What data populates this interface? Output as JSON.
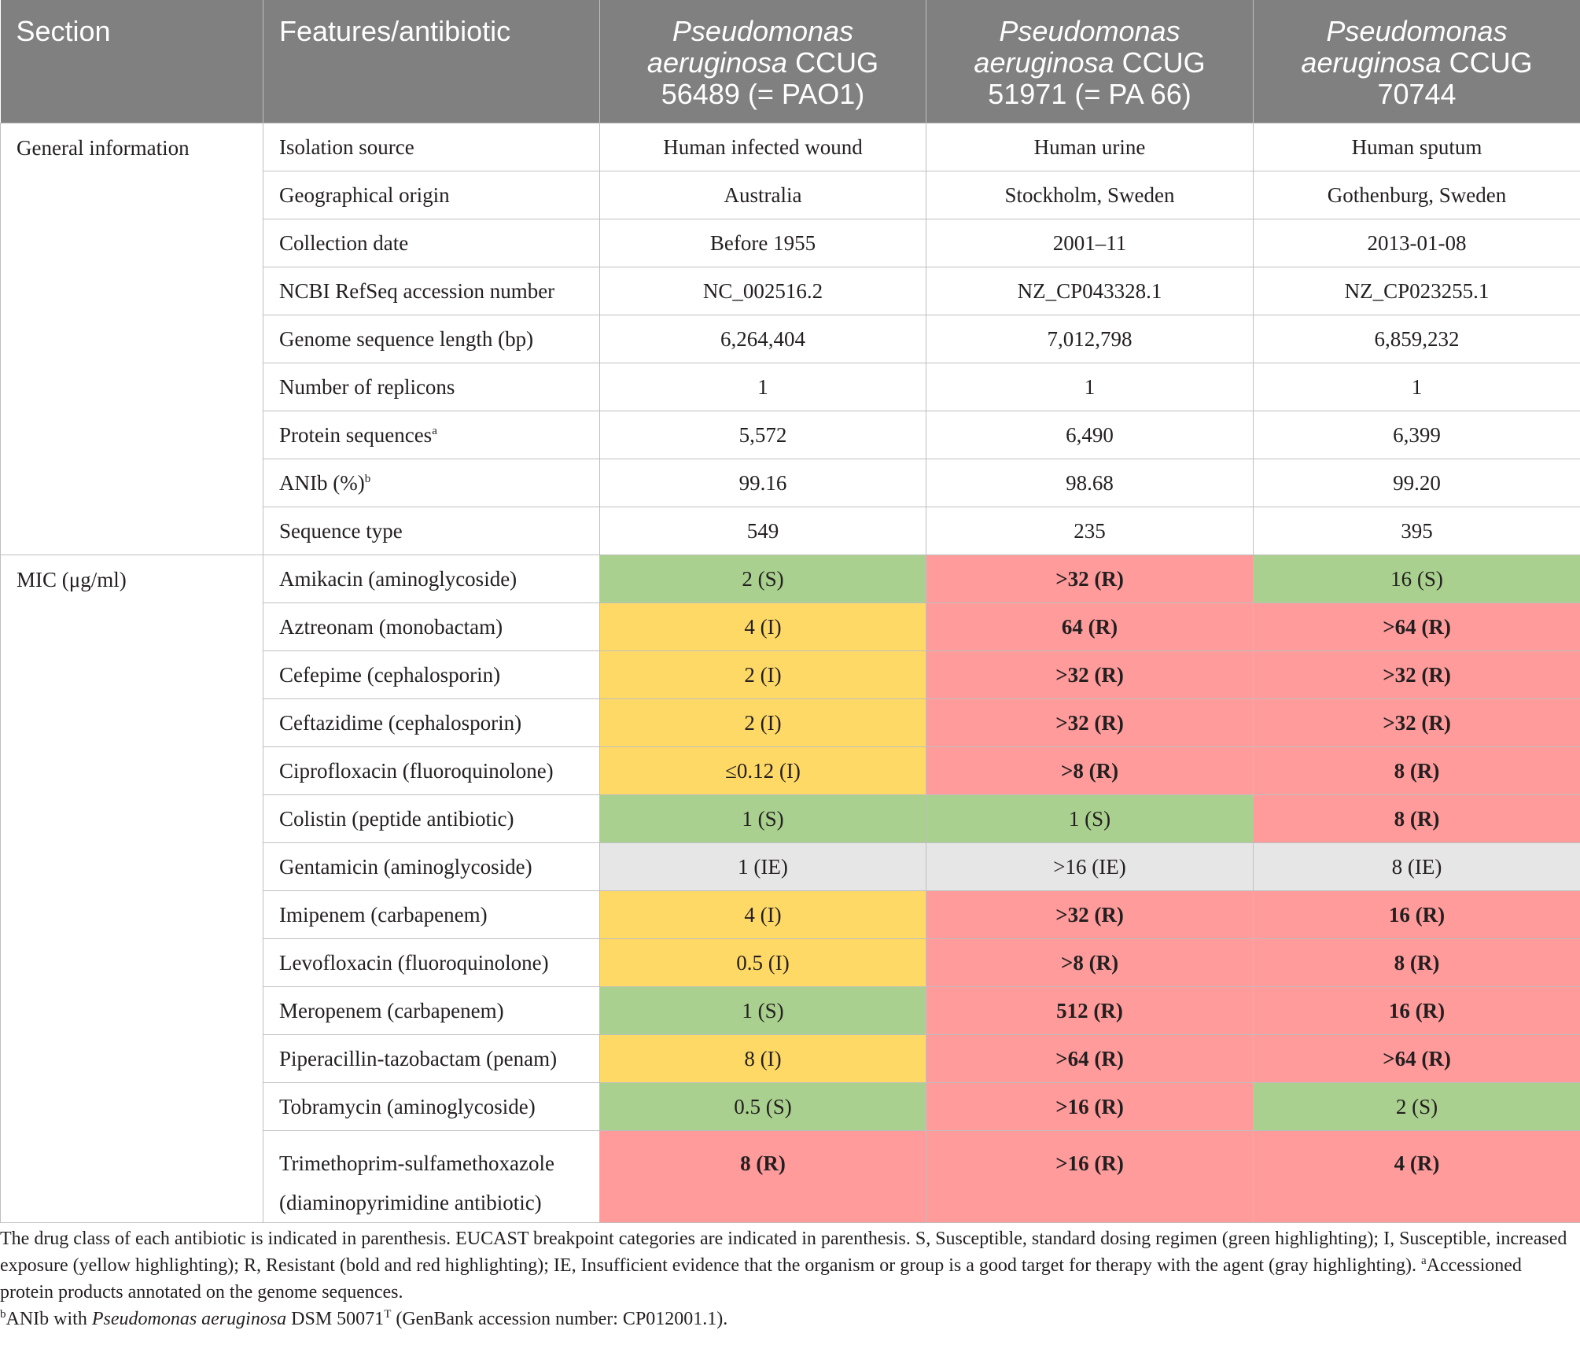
{
  "header": {
    "section": "Section",
    "features": "Features/antibiotic",
    "strains": [
      {
        "species": "Pseudomonas aeruginosa",
        "strain": "CCUG 56489 (= PAO1)"
      },
      {
        "species": "Pseudomonas aeruginosa",
        "strain": "CCUG 51971 (= PA 66)"
      },
      {
        "species": "Pseudomonas aeruginosa",
        "strain": "CCUG 70744"
      }
    ]
  },
  "general": {
    "section_label": "General information",
    "rows": [
      {
        "feature": "Isolation source",
        "sup": "",
        "values": [
          "Human infected wound",
          "Human urine",
          "Human sputum"
        ]
      },
      {
        "feature": "Geographical origin",
        "sup": "",
        "values": [
          "Australia",
          "Stockholm, Sweden",
          "Gothenburg, Sweden"
        ]
      },
      {
        "feature": "Collection date",
        "sup": "",
        "values": [
          "Before 1955",
          "2001–11",
          "2013-01-08"
        ]
      },
      {
        "feature": "NCBI RefSeq accession number",
        "sup": "",
        "values": [
          "NC_002516.2",
          "NZ_CP043328.1",
          "NZ_CP023255.1"
        ]
      },
      {
        "feature": "Genome sequence length (bp)",
        "sup": "",
        "values": [
          "6,264,404",
          "7,012,798",
          "6,859,232"
        ]
      },
      {
        "feature": "Number of replicons",
        "sup": "",
        "values": [
          "1",
          "1",
          "1"
        ]
      },
      {
        "feature": "Protein sequences",
        "sup": "a",
        "values": [
          "5,572",
          "6,490",
          "6,399"
        ]
      },
      {
        "feature": "ANIb (%)",
        "sup": "b",
        "values": [
          "99.16",
          "98.68",
          "99.20"
        ]
      },
      {
        "feature": "Sequence type",
        "sup": "",
        "values": [
          "549",
          "235",
          "395"
        ]
      }
    ]
  },
  "mic": {
    "section_label": "MIC (μg/ml)",
    "rows": [
      {
        "feature": "Amikacin (aminoglycoside)",
        "values": [
          "2 (S)",
          ">32 (R)",
          "16 (S)"
        ],
        "cats": [
          "S",
          "R",
          "S"
        ]
      },
      {
        "feature": "Aztreonam (monobactam)",
        "values": [
          "4 (I)",
          "64 (R)",
          ">64 (R)"
        ],
        "cats": [
          "I",
          "R",
          "R"
        ]
      },
      {
        "feature": "Cefepime (cephalosporin)",
        "values": [
          "2 (I)",
          ">32 (R)",
          ">32 (R)"
        ],
        "cats": [
          "I",
          "R",
          "R"
        ]
      },
      {
        "feature": "Ceftazidime (cephalosporin)",
        "values": [
          "2 (I)",
          ">32 (R)",
          ">32 (R)"
        ],
        "cats": [
          "I",
          "R",
          "R"
        ]
      },
      {
        "feature": "Ciprofloxacin (fluoroquinolone)",
        "values": [
          "≤0.12 (I)",
          ">8 (R)",
          "8 (R)"
        ],
        "cats": [
          "I",
          "R",
          "R"
        ]
      },
      {
        "feature": "Colistin (peptide antibiotic)",
        "values": [
          "1 (S)",
          "1 (S)",
          "8 (R)"
        ],
        "cats": [
          "S",
          "S",
          "R"
        ]
      },
      {
        "feature": "Gentamicin (aminoglycoside)",
        "values": [
          "1 (IE)",
          ">16 (IE)",
          "8 (IE)"
        ],
        "cats": [
          "IE",
          "IE",
          "IE"
        ]
      },
      {
        "feature": "Imipenem (carbapenem)",
        "values": [
          "4 (I)",
          ">32 (R)",
          "16 (R)"
        ],
        "cats": [
          "I",
          "R",
          "R"
        ]
      },
      {
        "feature": "Levofloxacin (fluoroquinolone)",
        "values": [
          "0.5 (I)",
          ">8 (R)",
          "8 (R)"
        ],
        "cats": [
          "I",
          "R",
          "R"
        ]
      },
      {
        "feature": "Meropenem (carbapenem)",
        "values": [
          "1 (S)",
          "512 (R)",
          "16 (R)"
        ],
        "cats": [
          "S",
          "R",
          "R"
        ]
      },
      {
        "feature": "Piperacillin-tazobactam (penam)",
        "values": [
          "8 (I)",
          ">64 (R)",
          ">64 (R)"
        ],
        "cats": [
          "I",
          "R",
          "R"
        ]
      },
      {
        "feature": "Tobramycin (aminoglycoside)",
        "values": [
          "0.5 (S)",
          ">16 (R)",
          "2 (S)"
        ],
        "cats": [
          "S",
          "R",
          "S"
        ]
      },
      {
        "feature": "Trimethoprim-sulfamethoxazole (diaminopyrimidine antibiotic)",
        "values": [
          "8 (R)",
          ">16 (R)",
          "4 (R)"
        ],
        "cats": [
          "R",
          "R",
          "R"
        ]
      }
    ]
  },
  "colors": {
    "header_bg": "#808080",
    "S": "#a9d08e",
    "I": "#ffd966",
    "R": "#ff9b9b",
    "IE": "#e7e6e6"
  },
  "footnotes": {
    "main": "The drug class of each antibiotic is indicated in parenthesis. EUCAST breakpoint categories are indicated in parenthesis. S, Susceptible, standard dosing regimen (green highlighting); I, Susceptible, increased exposure (yellow highlighting); R, Resistant (bold and red highlighting); IE, Insufficient evidence that the organism or group is a good target for therapy with the agent (gray highlighting).",
    "a_mark": "a",
    "a_text": "Accessioned protein products annotated on the genome sequences.",
    "b_mark": "b",
    "b_prefix": "ANIb with ",
    "b_species": "Pseudomonas aeruginosa",
    "b_strain": " DSM 50071",
    "b_type": "T",
    "b_suffix": " (GenBank accession number: CP012001.1)."
  }
}
